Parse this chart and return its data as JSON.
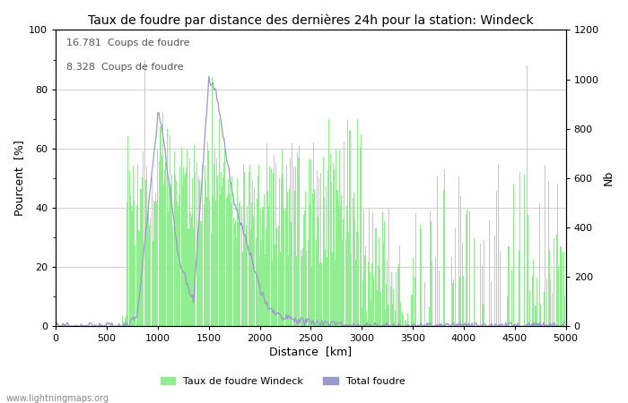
{
  "title": "Taux de foudre par distance des dernières 24h pour la station: Windeck",
  "xlabel": "Distance  [km]",
  "ylabel_left": "Pourcent  [%]",
  "ylabel_right": "Nb",
  "annotation_line1": "16.781  Coups de foudre",
  "annotation_line2": "8.328  Coups de foudre",
  "xlim": [
    0,
    5000
  ],
  "ylim_left": [
    0,
    100
  ],
  "ylim_right": [
    0,
    1200
  ],
  "xticks": [
    0,
    500,
    1000,
    1500,
    2000,
    2500,
    3000,
    3500,
    4000,
    4500,
    5000
  ],
  "yticks_left": [
    0,
    20,
    40,
    60,
    80,
    100
  ],
  "yticks_right": [
    0,
    200,
    400,
    600,
    800,
    1000,
    1200
  ],
  "bar_color": "#90EE90",
  "line_color": "#9999CC",
  "legend_label_bar": "Taux de foudre Windeck",
  "legend_label_line": "Total foudre",
  "watermark": "www.lightningmaps.org",
  "background_color": "#ffffff",
  "grid_color": "#c8c8c8"
}
